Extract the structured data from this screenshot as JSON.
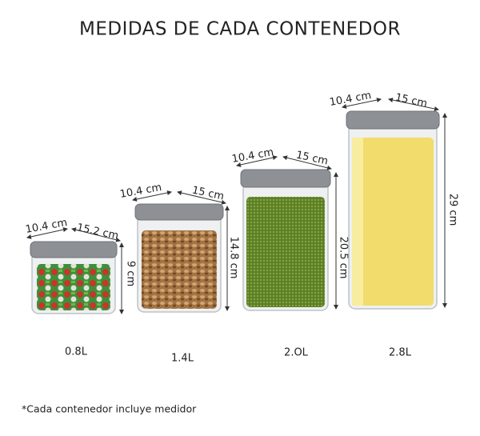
{
  "title": "MEDIDAS DE CADA CONTENEDOR",
  "containers": [
    {
      "width": "10.4 cm",
      "depth": "15.2 cm",
      "height": "9 cm",
      "capacity": "0.8L"
    },
    {
      "width": "10.4 cm",
      "depth": "15 cm",
      "height": "14.8 cm",
      "capacity": "1.4L"
    },
    {
      "width": "10.4 cm",
      "depth": "15 cm",
      "height": "20.5 cm",
      "capacity": "2.OL"
    },
    {
      "width": "10.4 cm",
      "depth": "15 cm",
      "height": "29 cm",
      "capacity": "2.8L"
    }
  ],
  "footnote": "*Cada contenedor incluye medidor"
}
